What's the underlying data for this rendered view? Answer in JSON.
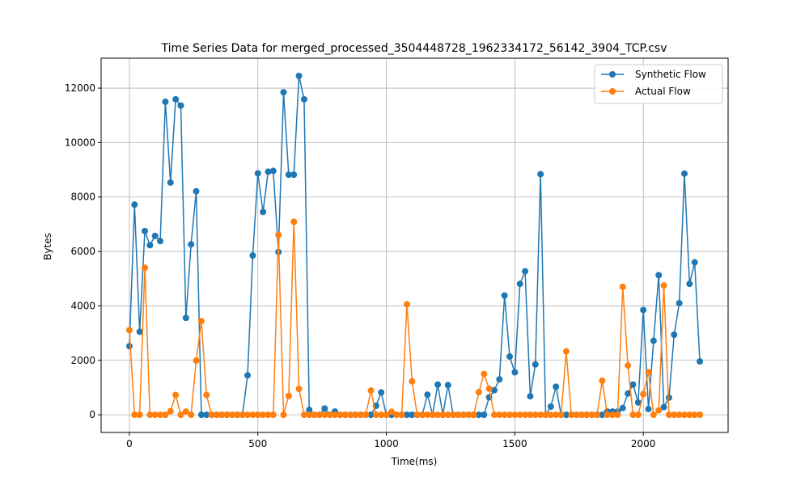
{
  "chart_data": {
    "type": "line",
    "title": "Time Series Data for merged_processed_3504448728_1962334172_56142_3904_TCP.csv",
    "xlabel": "Time(ms)",
    "ylabel": "Bytes",
    "xlim": [
      -110,
      2330
    ],
    "ylim": [
      -650,
      13100
    ],
    "xticks": [
      0,
      500,
      1000,
      1500,
      2000
    ],
    "yticks": [
      0,
      2000,
      4000,
      6000,
      8000,
      10000,
      12000
    ],
    "grid": true,
    "legend_position": "top-right",
    "colors": {
      "synthetic": "#1f77b4",
      "actual": "#ff7f0e"
    },
    "x": [
      0,
      20,
      40,
      60,
      80,
      100,
      120,
      140,
      160,
      180,
      200,
      220,
      240,
      260,
      280,
      300,
      320,
      340,
      360,
      380,
      400,
      420,
      440,
      460,
      480,
      500,
      520,
      540,
      560,
      580,
      600,
      620,
      640,
      660,
      680,
      700,
      720,
      740,
      760,
      780,
      800,
      820,
      840,
      860,
      880,
      900,
      920,
      940,
      960,
      980,
      1000,
      1020,
      1040,
      1060,
      1080,
      1100,
      1120,
      1140,
      1160,
      1180,
      1200,
      1220,
      1240,
      1260,
      1280,
      1300,
      1320,
      1340,
      1360,
      1380,
      1400,
      1420,
      1440,
      1460,
      1480,
      1500,
      1520,
      1540,
      1560,
      1580,
      1600,
      1620,
      1640,
      1660,
      1680,
      1700,
      1720,
      1740,
      1760,
      1780,
      1800,
      1820,
      1840,
      1860,
      1880,
      1900,
      1920,
      1940,
      1960,
      1980,
      2000,
      2020,
      2040,
      2060,
      2080,
      2100,
      2120,
      2140,
      2160,
      2180,
      2200,
      2220
    ],
    "series": [
      {
        "name": "Synthetic Flow",
        "values": [
          2520,
          7720,
          3050,
          6750,
          6230,
          6570,
          6380,
          11500,
          8530,
          11590,
          11360,
          3560,
          6260,
          8210,
          0,
          0,
          0,
          0,
          0,
          0,
          0,
          0,
          0,
          1450,
          5850,
          8870,
          7450,
          8930,
          8960,
          5980,
          11850,
          8820,
          8820,
          12450,
          11590,
          180,
          0,
          0,
          230,
          0,
          120,
          0,
          0,
          0,
          0,
          0,
          0,
          0,
          330,
          820,
          0,
          0,
          0,
          0,
          0,
          0,
          0,
          0,
          740,
          0,
          1110,
          0,
          1090,
          0,
          0,
          0,
          0,
          0,
          0,
          0,
          640,
          900,
          1300,
          4380,
          2140,
          1560,
          4810,
          5270,
          680,
          1850,
          8840,
          0,
          300,
          1030,
          0,
          0,
          0,
          0,
          0,
          0,
          0,
          0,
          0,
          120,
          120,
          120,
          250,
          780,
          1110,
          450,
          3850,
          210,
          2720,
          5130,
          280,
          630,
          2940,
          4100,
          8860,
          4810,
          5600,
          1960
        ]
      },
      {
        "name": "Actual Flow",
        "values": [
          3110,
          0,
          0,
          5400,
          0,
          0,
          0,
          0,
          130,
          730,
          0,
          120,
          0,
          1990,
          3440,
          730,
          0,
          0,
          0,
          0,
          0,
          0,
          0,
          0,
          0,
          0,
          0,
          0,
          0,
          6610,
          0,
          690,
          7090,
          950,
          0,
          0,
          0,
          0,
          0,
          0,
          0,
          0,
          0,
          0,
          0,
          0,
          0,
          890,
          0,
          0,
          0,
          110,
          0,
          0,
          4060,
          1230,
          0,
          0,
          0,
          0,
          0,
          0,
          0,
          0,
          0,
          0,
          0,
          0,
          830,
          1500,
          960,
          0,
          0,
          0,
          0,
          0,
          0,
          0,
          0,
          0,
          0,
          0,
          0,
          0,
          0,
          2330,
          0,
          0,
          0,
          0,
          0,
          0,
          1250,
          0,
          0,
          0,
          4700,
          1810,
          0,
          0,
          760,
          1560,
          0,
          160,
          4750,
          0,
          0,
          0,
          0,
          0,
          0,
          0
        ]
      }
    ]
  }
}
